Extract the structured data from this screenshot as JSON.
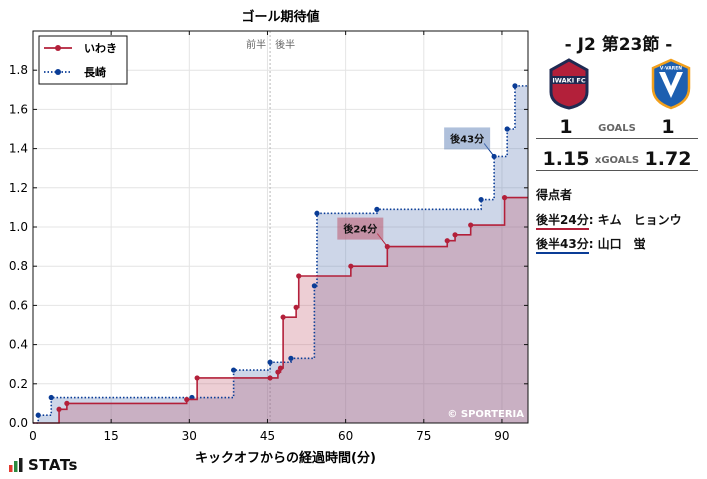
{
  "chart_data": {
    "type": "line",
    "title": "ゴール期待値",
    "xlabel": "キックオフからの経過時間(分)",
    "ylabel": "",
    "xlim": [
      0,
      95
    ],
    "ylim": [
      0,
      2.0
    ],
    "xticks": [
      0,
      15,
      30,
      45,
      60,
      75,
      90
    ],
    "yticks": [
      0,
      0.2,
      0.4,
      0.6,
      0.8,
      1.0,
      1.2,
      1.4,
      1.6,
      1.8
    ],
    "grid": true,
    "legend_position": "top-left",
    "step": true,
    "halftime_marker": {
      "x": 45.5,
      "left_label": "前半",
      "right_label": "後半"
    },
    "watermark": "© SPORTERIA",
    "series": [
      {
        "name": "いわき",
        "color": "#b3203a",
        "fill": "rgba(190,80,100,0.28)",
        "style": "solid",
        "x": [
          0,
          5,
          6.5,
          29.5,
          31.5,
          45.5,
          47,
          47.5,
          48,
          50.5,
          51,
          61,
          68,
          79.5,
          81,
          84,
          90.5,
          95
        ],
        "y": [
          0,
          0.07,
          0.1,
          0.12,
          0.23,
          0.23,
          0.26,
          0.28,
          0.54,
          0.59,
          0.75,
          0.8,
          0.9,
          0.93,
          0.96,
          1.01,
          1.15,
          1.15
        ]
      },
      {
        "name": "長崎",
        "color": "#0a3c96",
        "fill": "rgba(90,120,180,0.30)",
        "style": "dotted",
        "x": [
          0,
          1,
          3.5,
          30.5,
          38.5,
          45.5,
          49.5,
          54,
          54.5,
          66,
          86,
          88.5,
          91,
          92.5,
          95
        ],
        "y": [
          0,
          0.04,
          0.13,
          0.13,
          0.27,
          0.31,
          0.33,
          0.7,
          1.07,
          1.09,
          1.14,
          1.36,
          1.5,
          1.72,
          1.72
        ]
      }
    ],
    "annotations": [
      {
        "text": "後24分",
        "x": 68,
        "y": 0.9,
        "series": 0
      },
      {
        "text": "後43分",
        "x": 88.5,
        "y": 1.36,
        "series": 1
      }
    ]
  },
  "match": {
    "title": "- J2 第23節 -",
    "home_goals": "1",
    "away_goals": "1",
    "goals_label": "GOALS",
    "home_xg": "1.15",
    "away_xg": "1.72",
    "xg_label": "xGOALS",
    "home_crest_text": "IWAKI FC",
    "away_crest_text": "V·VAREN"
  },
  "scorers": {
    "heading": "得点者",
    "items": [
      {
        "time": "後半24分",
        "name": ": キム　ヒョンウ",
        "color": "#b3203a"
      },
      {
        "time": "後半43分",
        "name": ": 山口　蛍",
        "color": "#0a3c96"
      }
    ]
  },
  "branding": {
    "logo_text": "STATs",
    "bar_colors": [
      "#e23a2f",
      "#2a8a3e",
      "#1c1c1c"
    ]
  }
}
